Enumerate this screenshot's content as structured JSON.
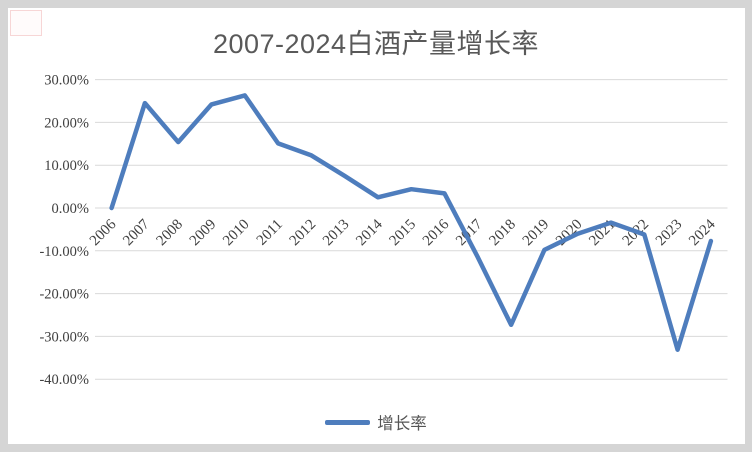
{
  "title": "2007-2024白酒产量增长率",
  "legend": {
    "label": "增长率"
  },
  "colors": {
    "background": "#d5d5d5",
    "card": "#ffffff",
    "line": "#4e7dbd",
    "grid": "#d9d9d9",
    "title_text": "#595959",
    "axis_text": "#404040"
  },
  "chart_data": {
    "type": "line",
    "title": "2007-2024白酒产量增长率",
    "categories": [
      "2006",
      "2007",
      "2008",
      "2009",
      "2010",
      "2011",
      "2012",
      "2013",
      "2014",
      "2015",
      "2016",
      "2017",
      "2018",
      "2019",
      "2020",
      "2021",
      "2022",
      "2023",
      "2024"
    ],
    "series": [
      {
        "name": "增长率",
        "values": [
          0.0,
          24.5,
          15.4,
          24.2,
          26.3,
          15.1,
          12.3,
          7.5,
          2.5,
          4.4,
          3.4,
          -11.5,
          -27.3,
          -9.8,
          -6.0,
          -3.4,
          -6.2,
          -33.1,
          -7.7
        ]
      }
    ],
    "xlabel": "",
    "ylabel": "",
    "ylim": [
      -40,
      30
    ],
    "y_tick_values": [
      30,
      20,
      10,
      0,
      -10,
      -20,
      -30,
      -40
    ],
    "y_tick_labels": [
      "30.00%",
      "20.00%",
      "10.00%",
      "0.00%",
      "-10.00%",
      "-20.00%",
      "-30.00%",
      "-40.00%"
    ],
    "grid": true,
    "legend_position": "bottom",
    "x_tick_rotation_deg": -45
  }
}
